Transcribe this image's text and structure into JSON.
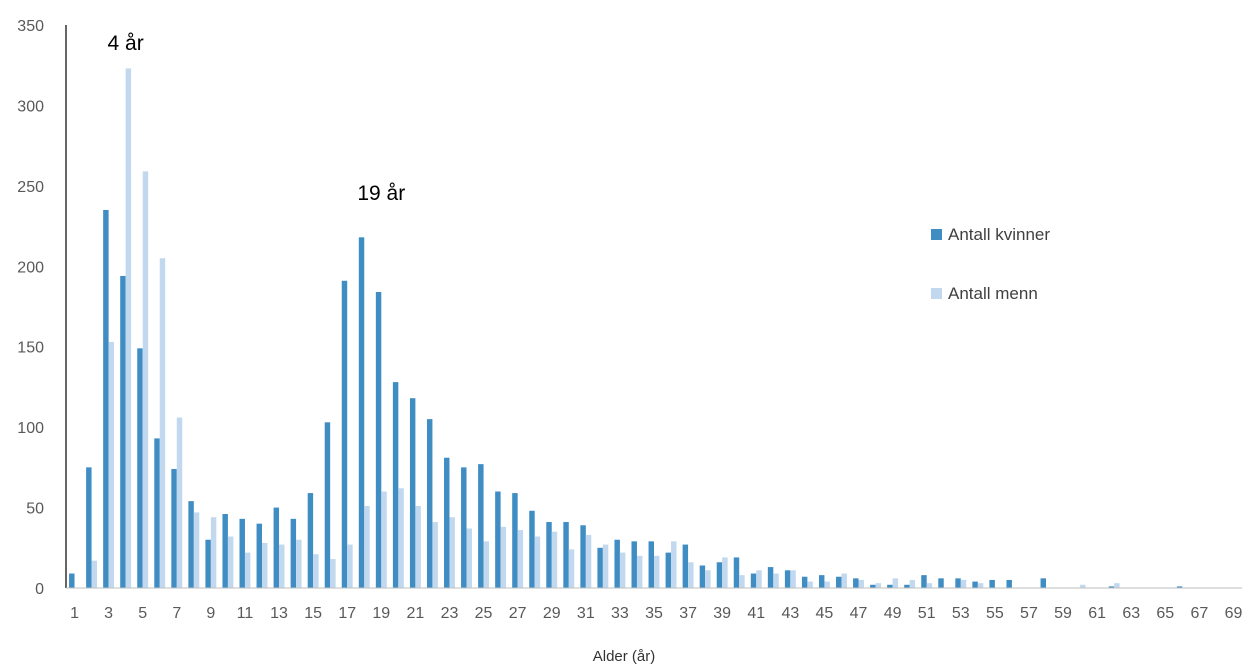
{
  "chart_data": {
    "type": "bar",
    "xlabel": "Alder (år)",
    "ylabel": "",
    "ylim": [
      0,
      350
    ],
    "yticks": [
      0,
      50,
      100,
      150,
      200,
      250,
      300,
      350
    ],
    "x": [
      1,
      2,
      3,
      4,
      5,
      6,
      7,
      8,
      9,
      10,
      11,
      12,
      13,
      14,
      15,
      16,
      17,
      18,
      19,
      20,
      21,
      22,
      23,
      24,
      25,
      26,
      27,
      28,
      29,
      30,
      31,
      32,
      33,
      34,
      35,
      36,
      37,
      38,
      39,
      40,
      41,
      42,
      43,
      44,
      45,
      46,
      47,
      48,
      49,
      50,
      51,
      52,
      53,
      54,
      55,
      56,
      57,
      58,
      59,
      60,
      61,
      62,
      63,
      64,
      65,
      66,
      67,
      68,
      69
    ],
    "xtick_labels": [
      "1",
      "3",
      "5",
      "7",
      "9",
      "11",
      "13",
      "15",
      "17",
      "19",
      "21",
      "23",
      "25",
      "27",
      "29",
      "31",
      "33",
      "35",
      "37",
      "39",
      "41",
      "43",
      "45",
      "47",
      "49",
      "51",
      "53",
      "55",
      "57",
      "59",
      "61",
      "63",
      "65",
      "67",
      "69"
    ],
    "series": [
      {
        "name": "Antall kvinner",
        "color": "#3f8dc3",
        "values": [
          9,
          75,
          235,
          194,
          149,
          93,
          74,
          54,
          30,
          46,
          43,
          40,
          50,
          43,
          59,
          103,
          191,
          218,
          184,
          128,
          118,
          105,
          81,
          75,
          77,
          60,
          59,
          48,
          41,
          41,
          39,
          25,
          30,
          29,
          29,
          22,
          27,
          14,
          16,
          19,
          9,
          13,
          11,
          7,
          8,
          7,
          6,
          2,
          2,
          2,
          8,
          6,
          6,
          4,
          5,
          5,
          0,
          6,
          0,
          0,
          0,
          1,
          0,
          0,
          0,
          1,
          0,
          0,
          0
        ]
      },
      {
        "name": "Antall menn",
        "color": "#c1d8ee",
        "values": [
          0,
          17,
          153,
          323,
          259,
          205,
          106,
          47,
          44,
          32,
          22,
          28,
          27,
          30,
          21,
          18,
          27,
          51,
          60,
          62,
          51,
          41,
          44,
          37,
          29,
          38,
          36,
          32,
          35,
          24,
          33,
          27,
          22,
          20,
          20,
          29,
          16,
          11,
          19,
          8,
          11,
          9,
          11,
          4,
          4,
          9,
          5,
          3,
          6,
          5,
          3,
          0,
          5,
          3,
          0,
          0,
          0,
          0,
          0,
          2,
          0,
          3,
          0,
          0,
          0,
          0,
          0,
          0,
          0
        ]
      }
    ],
    "annotations": [
      {
        "text": "4 år",
        "x": 4
      },
      {
        "text": "19 år",
        "x": 19
      }
    ],
    "legend_position": "right",
    "grid": false
  }
}
